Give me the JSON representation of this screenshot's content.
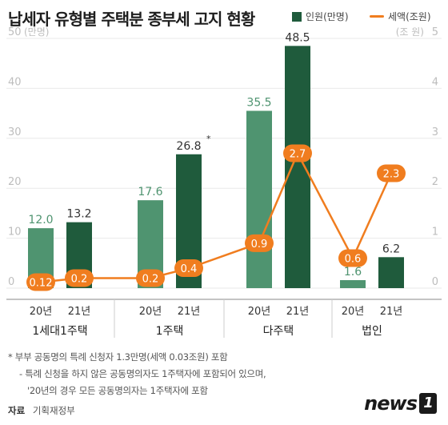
{
  "title": "납세자 유형별 주택분 종부세 고지 현황",
  "legend": {
    "people": "인원(만명)",
    "tax": "세액(조원)"
  },
  "colors": {
    "bar_20": "#4f9470",
    "bar_21": "#1f5b3c",
    "line": "#f07d1f",
    "axis_text": "#bdbdbd",
    "label_green": "#4f9470"
  },
  "chart_data": {
    "type": "bar",
    "groups": [
      "1세대1주택",
      "1주택",
      "다주택",
      "법인"
    ],
    "year_labels": [
      "20년",
      "21년"
    ],
    "y_left": {
      "label": "(만명)",
      "ticks": [
        "0",
        "10",
        "20",
        "30",
        "40",
        "50"
      ],
      "ylim": [
        0,
        50
      ]
    },
    "y_right": {
      "label": "(조 원)",
      "ticks": [
        "0",
        "1",
        "2",
        "3",
        "4",
        "5"
      ],
      "ylim": [
        0,
        5
      ]
    },
    "series": [
      {
        "name": "인원(만명)",
        "type": "bar",
        "values": [
          {
            "group": "1세대1주택",
            "year": "20년",
            "value": 12.0,
            "label": "12.0"
          },
          {
            "group": "1세대1주택",
            "year": "21년",
            "value": 13.2,
            "label": "13.2"
          },
          {
            "group": "1주택",
            "year": "20년",
            "value": 17.6,
            "label": "17.6"
          },
          {
            "group": "1주택",
            "year": "21년",
            "value": 26.8,
            "label": "26.8"
          },
          {
            "group": "다주택",
            "year": "20년",
            "value": 35.5,
            "label": "35.5"
          },
          {
            "group": "다주택",
            "year": "21년",
            "value": 48.5,
            "label": "48.5"
          },
          {
            "group": "법인",
            "year": "20년",
            "value": 1.6,
            "label": "1.6"
          },
          {
            "group": "법인",
            "year": "21년",
            "value": 6.2,
            "label": "6.2"
          }
        ]
      },
      {
        "name": "세액(조원)",
        "type": "line",
        "values": [
          0.12,
          0.2,
          0.2,
          0.4,
          0.9,
          2.7,
          0.6,
          2.3
        ],
        "labels": [
          "0.12",
          "0.2",
          "0.2",
          "0.4",
          "0.9",
          "2.7",
          "0.6",
          "2.3"
        ]
      }
    ],
    "annotation_marker": "*",
    "grid": true
  },
  "notes": [
    "* 부부 공동명의 특례 신청자 1.3만명(세액 0.03조원) 포함",
    "- 특례 신청을 하지 않은 공동명의자도 1주택자에 포함되어 있으며,",
    "'20년의 경우 모든 공동명의자는 1주택자에 포함"
  ],
  "source": {
    "label": "자료",
    "text": "기획재정부"
  },
  "logo": {
    "text": "news",
    "mark": "1"
  }
}
